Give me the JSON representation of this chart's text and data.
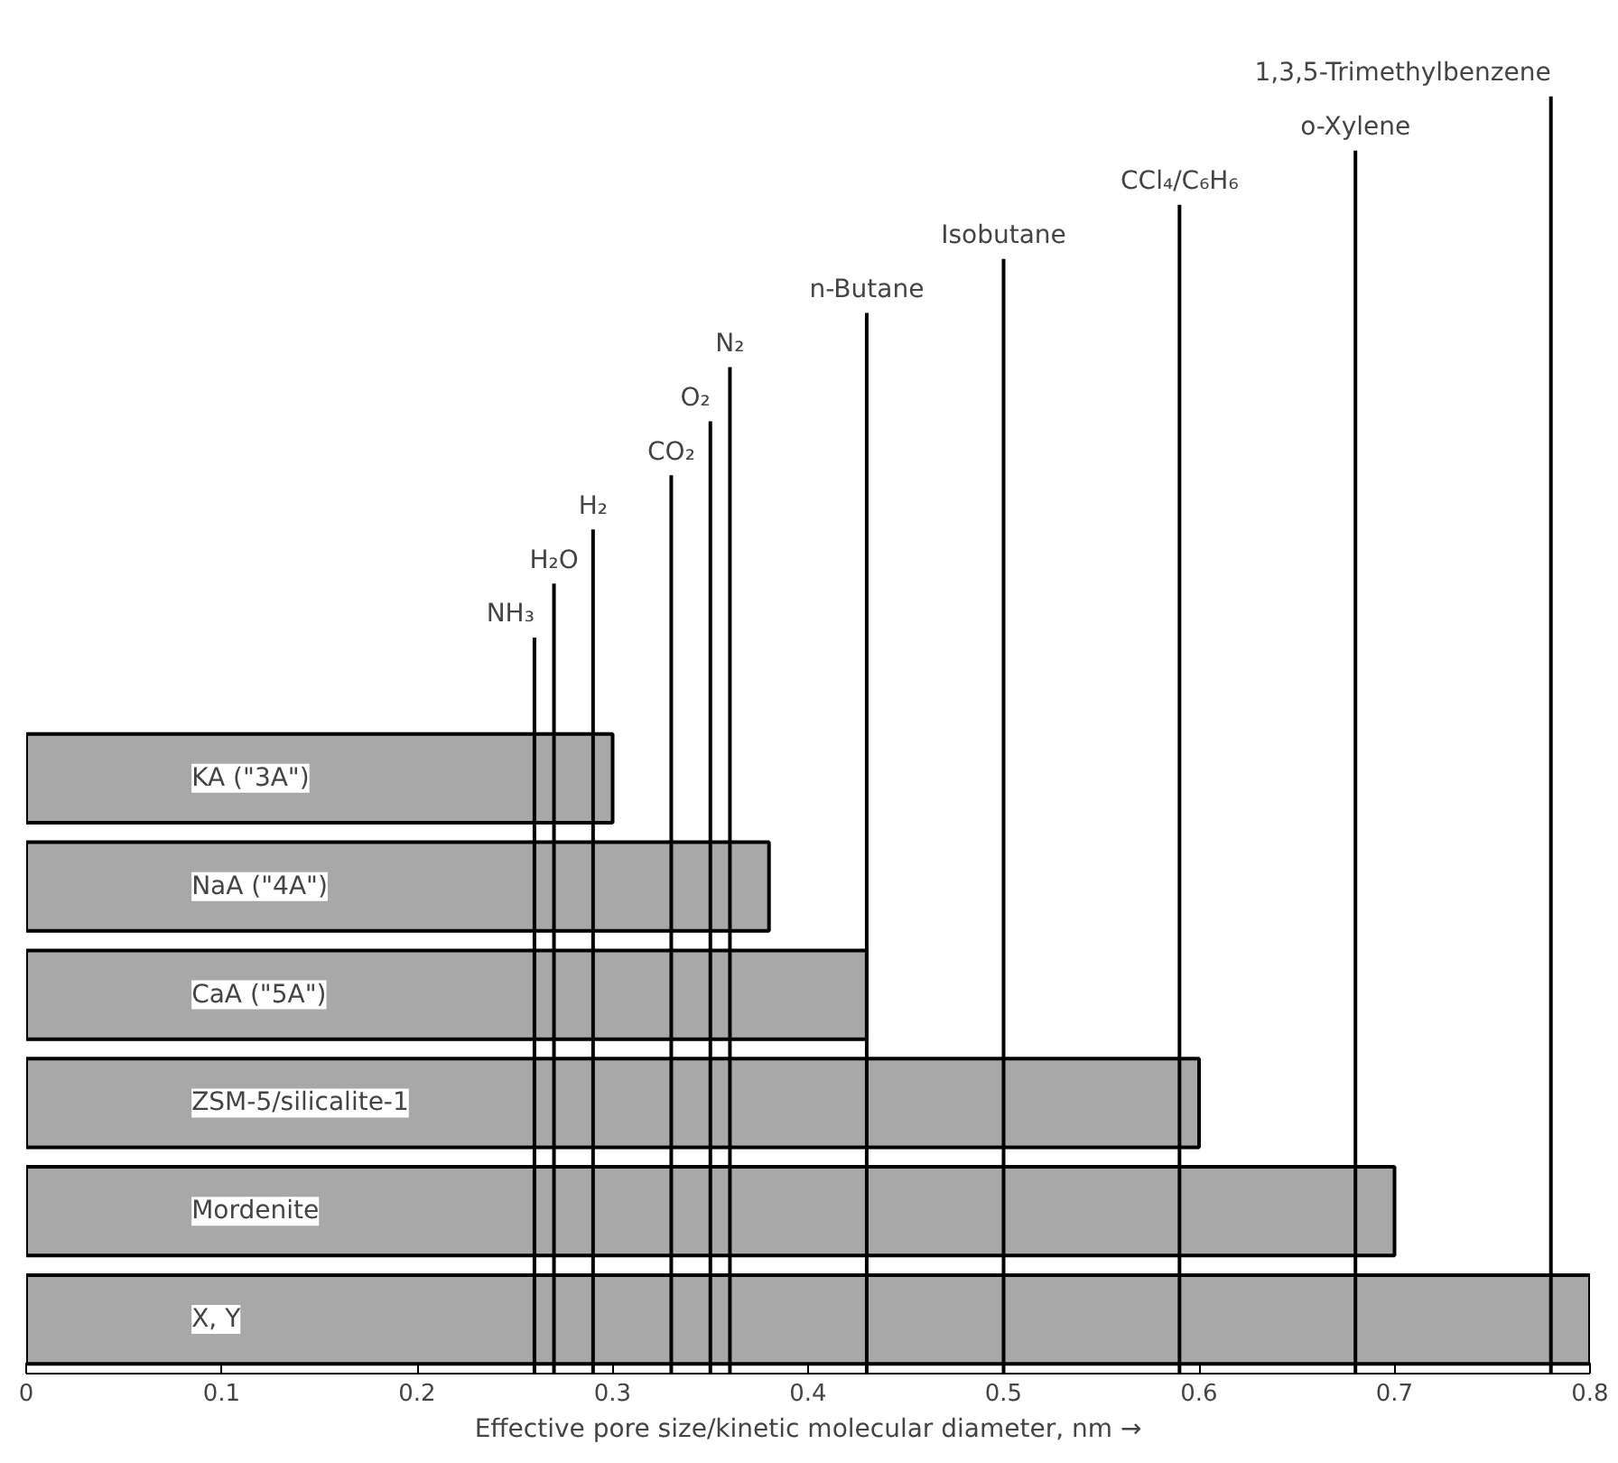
{
  "chart_data": {
    "type": "bar",
    "orientation": "horizontal",
    "xlabel": "Effective pore size/kinetic molecular diameter, nm →",
    "categories": [
      "KA (\"3A\")",
      "NaA (\"4A\")",
      "CaA (\"5A\")",
      "ZSM-5/silicalite-1",
      "Mordenite",
      "X, Y"
    ],
    "values": [
      0.3,
      0.38,
      0.43,
      0.6,
      0.7,
      0.8
    ],
    "color": "#a8a8a8",
    "xlim": [
      0,
      0.8
    ],
    "xticks": [
      0,
      0.1,
      0.2,
      0.3,
      0.4,
      0.5,
      0.6,
      0.7,
      0.8
    ],
    "tick_labels": "x",
    "grid": false,
    "ref_lines": [
      {
        "axis": "x",
        "value": 0.26,
        "label": "NH₃",
        "color": "#000000"
      },
      {
        "axis": "x",
        "value": 0.27,
        "label": "H₂O",
        "color": "#000000"
      },
      {
        "axis": "x",
        "value": 0.29,
        "label": "H₂",
        "color": "#000000"
      },
      {
        "axis": "x",
        "value": 0.33,
        "label": "CO₂",
        "color": "#000000"
      },
      {
        "axis": "x",
        "value": 0.35,
        "label": "O₂",
        "color": "#000000"
      },
      {
        "axis": "x",
        "value": 0.36,
        "label": "N₂",
        "color": "#000000"
      },
      {
        "axis": "x",
        "value": 0.43,
        "label": "n-Butane",
        "color": "#000000"
      },
      {
        "axis": "x",
        "value": 0.5,
        "label": "Isobutane",
        "color": "#000000"
      },
      {
        "axis": "x",
        "value": 0.59,
        "label": "CCl₄/C₆H₆",
        "color": "#000000"
      },
      {
        "axis": "x",
        "value": 0.68,
        "label": "o-Xylene",
        "color": "#000000"
      },
      {
        "axis": "x",
        "value": 0.78,
        "label": "1,3,5-Trimethylbenzene",
        "color": "#000000"
      }
    ]
  }
}
